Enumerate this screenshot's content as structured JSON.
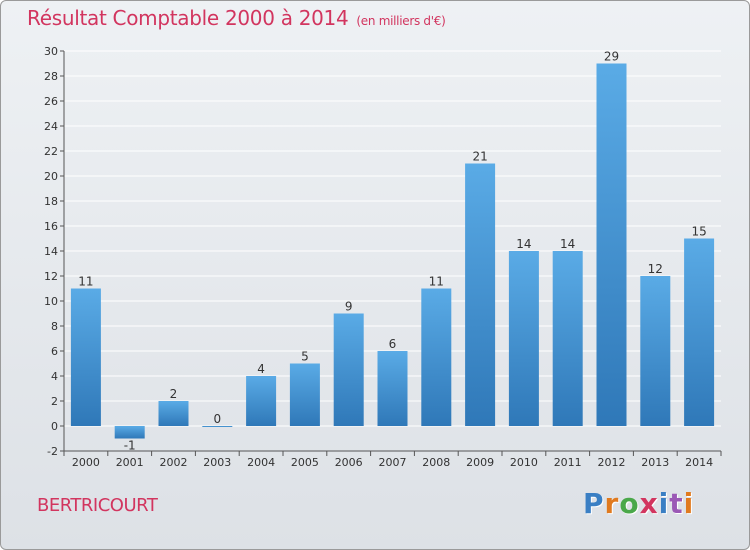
{
  "title": "Résultat Comptable 2000 à 2014",
  "subtitle": "(en milliers d'€)",
  "town": "BERTRICOURT",
  "logo": {
    "text": "Proxiti",
    "letter_colors": [
      "#3a7fc4",
      "#e07a1f",
      "#4aa84a",
      "#d2355f",
      "#3a7fc4",
      "#9b59b6",
      "#e07a1f"
    ]
  },
  "colors": {
    "bar_top": "#5aabe6",
    "bar_bottom": "#2f78b8",
    "accent": "#d2355f",
    "grid": "#ffffff"
  },
  "chart_data": {
    "type": "bar",
    "categories": [
      "2000",
      "2001",
      "2002",
      "2003",
      "2004",
      "2005",
      "2006",
      "2007",
      "2008",
      "2009",
      "2010",
      "2011",
      "2012",
      "2013",
      "2014"
    ],
    "values": [
      11,
      -1,
      2,
      0,
      4,
      5,
      9,
      6,
      11,
      21,
      14,
      14,
      29,
      12,
      15
    ],
    "data_labels": [
      "11",
      "-1",
      "2",
      "0",
      "4",
      "5",
      "9",
      "6",
      "11",
      "21",
      "14",
      "14",
      "29",
      "12",
      "15"
    ],
    "ylim": [
      -2,
      30
    ],
    "yticks": [
      -2,
      0,
      2,
      4,
      6,
      8,
      10,
      12,
      14,
      16,
      18,
      20,
      22,
      24,
      26,
      28,
      30
    ],
    "grid": true,
    "legend": "none",
    "xlabel": "",
    "ylabel": ""
  }
}
